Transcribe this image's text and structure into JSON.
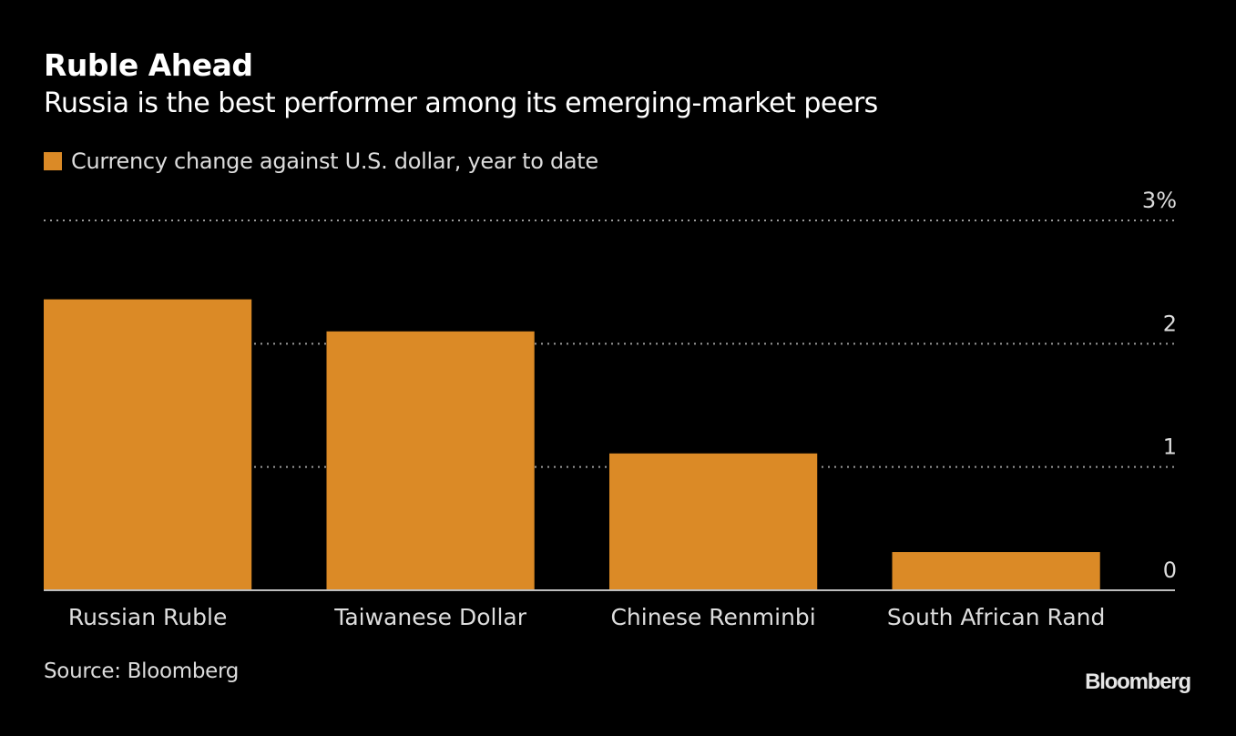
{
  "chart_data": {
    "type": "bar",
    "title": "Ruble Ahead",
    "subtitle": "Russia is the best performer among its emerging-market peers",
    "legend": [
      {
        "name": "Currency change against U.S. dollar, year to date",
        "color": "#db8a26"
      }
    ],
    "legend_position": "top-left",
    "categories": [
      "Russian Ruble",
      "Taiwanese Dollar",
      "Chinese Renminbi",
      "South African Rand"
    ],
    "series": [
      {
        "name": "Currency change against U.S. dollar, year to date",
        "values": [
          2.36,
          2.1,
          1.11,
          0.31
        ],
        "color": "#db8a26"
      }
    ],
    "xlabel": "",
    "ylabel": "",
    "ylim": [
      0,
      3
    ],
    "yticks": [
      0,
      1,
      2,
      3
    ],
    "ytick_labels": [
      "0",
      "1",
      "2",
      "3%"
    ],
    "y_axis_position": "right",
    "grid": true,
    "source": "Source: Bloomberg",
    "brand": "Bloomberg"
  }
}
